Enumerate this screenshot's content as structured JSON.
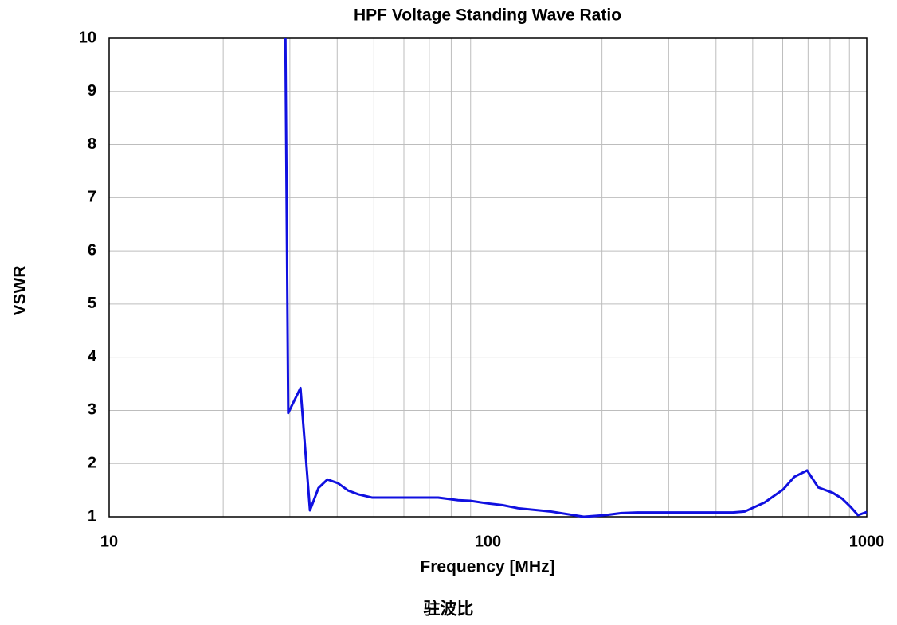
{
  "chart_data": {
    "type": "line",
    "title": "HPF Voltage Standing Wave Ratio",
    "x_label": "Frequency [MHz]",
    "y_label": "VSWR",
    "caption": "驻波比",
    "x_scale": "log",
    "xlim": [
      10,
      1000
    ],
    "xticks": [
      10,
      100,
      1000
    ],
    "x_minor_grid": [
      20,
      30,
      40,
      50,
      60,
      70,
      80,
      90,
      200,
      300,
      400,
      500,
      600,
      700,
      800,
      900
    ],
    "ylim": [
      1,
      10
    ],
    "yticks": [
      1,
      2,
      3,
      4,
      5,
      6,
      7,
      8,
      9,
      10
    ],
    "grid": true,
    "x": [
      29.2,
      29.7,
      32.0,
      33.9,
      35.7,
      37.7,
      40.2,
      42.8,
      45.5,
      49.4,
      73.9,
      83.4,
      89.7,
      100,
      109,
      120,
      146,
      179,
      204,
      225,
      248,
      443,
      477,
      538,
      601,
      644,
      696,
      745,
      813,
      861,
      908,
      948,
      1000
    ],
    "series": [
      {
        "name": "VSWR",
        "color": "#1010e0",
        "values": [
          10,
          2.95,
          3.42,
          1.12,
          1.54,
          1.7,
          1.63,
          1.49,
          1.42,
          1.36,
          1.36,
          1.31,
          1.3,
          1.25,
          1.22,
          1.16,
          1.1,
          1.0,
          1.03,
          1.07,
          1.08,
          1.08,
          1.1,
          1.27,
          1.51,
          1.75,
          1.87,
          1.55,
          1.45,
          1.34,
          1.18,
          1.03,
          1.09
        ]
      }
    ]
  }
}
